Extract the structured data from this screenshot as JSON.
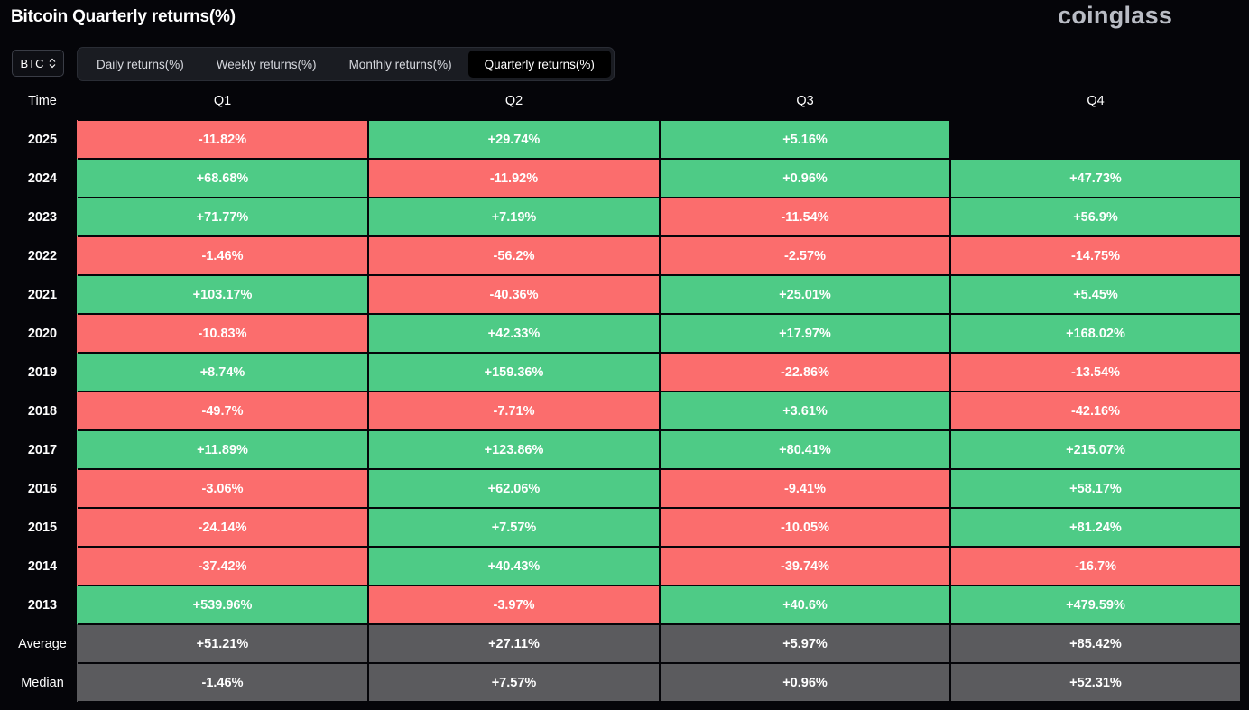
{
  "header": {
    "title": "Bitcoin Quarterly returns(%)",
    "brand": "coinglass"
  },
  "asset_select": {
    "value": "BTC"
  },
  "tabs": [
    {
      "label": "Daily returns(%)",
      "active": false
    },
    {
      "label": "Weekly returns(%)",
      "active": false
    },
    {
      "label": "Monthly returns(%)",
      "active": false
    },
    {
      "label": "Quarterly returns(%)",
      "active": true
    }
  ],
  "table": {
    "headers": [
      "Time",
      "Q1",
      "Q2",
      "Q3",
      "Q4"
    ],
    "rows": [
      {
        "year": "2025",
        "values": [
          "-11.82%",
          "+29.74%",
          "+5.16%",
          ""
        ]
      },
      {
        "year": "2024",
        "values": [
          "+68.68%",
          "-11.92%",
          "+0.96%",
          "+47.73%"
        ]
      },
      {
        "year": "2023",
        "values": [
          "+71.77%",
          "+7.19%",
          "-11.54%",
          "+56.9%"
        ]
      },
      {
        "year": "2022",
        "values": [
          "-1.46%",
          "-56.2%",
          "-2.57%",
          "-14.75%"
        ]
      },
      {
        "year": "2021",
        "values": [
          "+103.17%",
          "-40.36%",
          "+25.01%",
          "+5.45%"
        ]
      },
      {
        "year": "2020",
        "values": [
          "-10.83%",
          "+42.33%",
          "+17.97%",
          "+168.02%"
        ]
      },
      {
        "year": "2019",
        "values": [
          "+8.74%",
          "+159.36%",
          "-22.86%",
          "-13.54%"
        ]
      },
      {
        "year": "2018",
        "values": [
          "-49.7%",
          "-7.71%",
          "+3.61%",
          "-42.16%"
        ]
      },
      {
        "year": "2017",
        "values": [
          "+11.89%",
          "+123.86%",
          "+80.41%",
          "+215.07%"
        ]
      },
      {
        "year": "2016",
        "values": [
          "-3.06%",
          "+62.06%",
          "-9.41%",
          "+58.17%"
        ]
      },
      {
        "year": "2015",
        "values": [
          "-24.14%",
          "+7.57%",
          "-10.05%",
          "+81.24%"
        ]
      },
      {
        "year": "2014",
        "values": [
          "-37.42%",
          "+40.43%",
          "-39.74%",
          "-16.7%"
        ]
      },
      {
        "year": "2013",
        "values": [
          "+539.96%",
          "-3.97%",
          "+40.6%",
          "+479.59%"
        ]
      }
    ],
    "stats": [
      {
        "label": "Average",
        "values": [
          "+51.21%",
          "+27.11%",
          "+5.97%",
          "+85.42%"
        ]
      },
      {
        "label": "Median",
        "values": [
          "-1.46%",
          "+7.57%",
          "+0.96%",
          "+52.31%"
        ]
      }
    ]
  },
  "colors": {
    "positive": "#4ecb86",
    "negative": "#fb6d6d",
    "stat": "#5b5b5e",
    "background": "#050509"
  }
}
